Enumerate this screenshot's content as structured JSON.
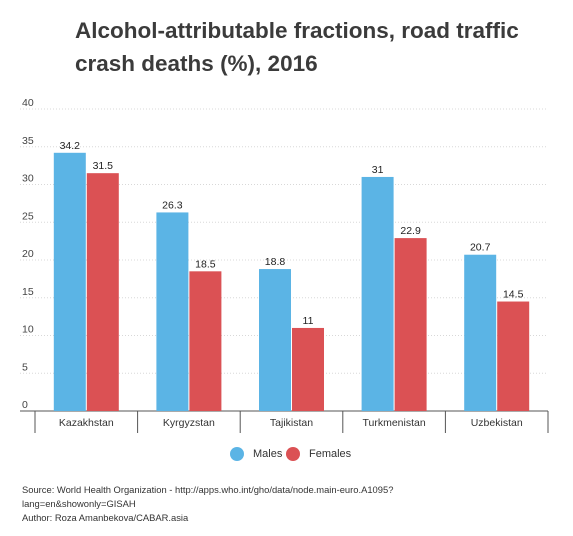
{
  "title": "Alcohol-attributable fractions, road traffic crash deaths (%), 2016",
  "chart_data": {
    "type": "bar",
    "title": "Alcohol-attributable fractions, road traffic crash deaths (%), 2016",
    "categories": [
      "Kazakhstan",
      "Kyrgyzstan",
      "Tajikistan",
      "Turkmenistan",
      "Uzbekistan"
    ],
    "series": [
      {
        "name": "Males",
        "color": "#5bb4e5",
        "values": [
          34.2,
          26.3,
          18.8,
          31,
          20.7
        ]
      },
      {
        "name": "Females",
        "color": "#db5154",
        "values": [
          31.5,
          18.5,
          11,
          22.9,
          14.5
        ]
      }
    ],
    "data_labels": [
      [
        "34.2",
        "26.3",
        "18.8",
        "31",
        "20.7"
      ],
      [
        "31.5",
        "18.5",
        "11",
        "22.9",
        "14.5"
      ]
    ],
    "ylim": [
      0,
      40
    ],
    "yticks": [
      "0",
      "5",
      "10",
      "15",
      "20",
      "25",
      "30",
      "35",
      "40"
    ],
    "xlabel": "",
    "ylabel": "",
    "grid": true,
    "legend_position": "bottom"
  },
  "source_lines": [
    "Source: World Health Organization - http://apps.who.int/gho/data/node.main-euro.A1095?",
    "lang=en&showonly=GISAH",
    "Author: Roza Amanbekova/CABAR.asia"
  ]
}
